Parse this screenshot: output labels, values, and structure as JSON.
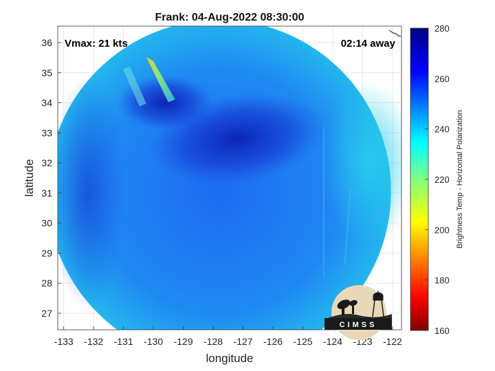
{
  "chart_data": {
    "type": "heatmap",
    "title": "Frank: 04-Aug-2022 08:30:00",
    "xlabel": "longitude",
    "ylabel": "latitude",
    "xlim": [
      -133.2,
      -121.7
    ],
    "ylim": [
      26.45,
      36.55
    ],
    "x_ticks": [
      -133,
      -132,
      -131,
      -130,
      -129,
      -128,
      -127,
      -126,
      -125,
      -124,
      -123,
      -122
    ],
    "x_tick_labels": [
      "-133",
      "-132",
      "-131",
      "-130",
      "-129",
      "-128",
      "-127",
      "-126",
      "-125",
      "-124",
      "-123",
      "-122"
    ],
    "y_ticks": [
      27,
      28,
      29,
      30,
      31,
      32,
      33,
      34,
      35,
      36
    ],
    "y_tick_labels": [
      "27",
      "28",
      "29",
      "30",
      "31",
      "32",
      "33",
      "34",
      "35",
      "36"
    ],
    "grid": true,
    "annotations": {
      "vmax": "Vmax: 21 kts",
      "distance": "02:14 away"
    },
    "colorbar": {
      "label": "Brightness Temp - Horizontal Polarization",
      "range": [
        160,
        280
      ],
      "ticks": [
        160,
        180,
        200,
        220,
        240,
        260,
        280
      ],
      "tick_labels": [
        "160",
        "180",
        "200",
        "220",
        "240",
        "260",
        "280"
      ],
      "colormap": "jet"
    },
    "swath": {
      "center_lon": -127.8,
      "center_lat": 31.05,
      "shape": "circular",
      "typical_value": 250,
      "cold_core": {
        "lon": -127.2,
        "lat": 32.8,
        "value": 268
      },
      "warm_streak": {
        "lon": -130.1,
        "lat": 35.3,
        "value": 212
      }
    },
    "logo": "CIMSS"
  }
}
